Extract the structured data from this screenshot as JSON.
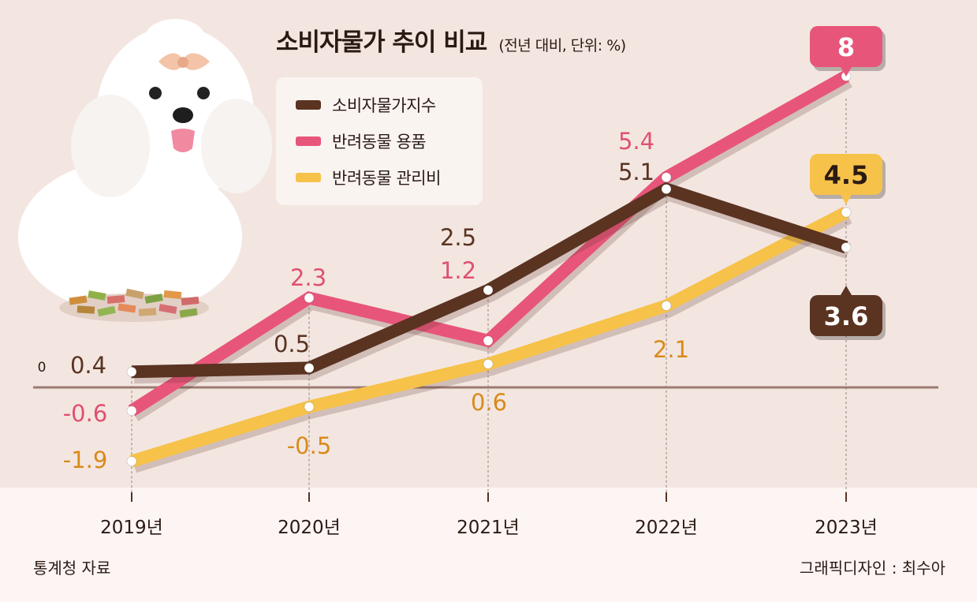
{
  "title": "소비자물가 추이 비교",
  "subtitle": "(전년 대비, 단위: %)",
  "source": "통계청 자료",
  "credit": "그래픽디자인 : 최수아",
  "colors": {
    "cpi": "#5a3321",
    "pet_goods": "#e8557a",
    "pet_care": "#f6c24a",
    "pet_goods_label": "#e05070",
    "pet_care_label": "#d98a1a",
    "background": "#f3e6e1",
    "axis_band": "#fdf5f3"
  },
  "chart_data": {
    "type": "line",
    "title": "소비자물가 추이 비교",
    "subtitle": "(전년 대비, 단위: %)",
    "xlabel": "",
    "ylabel": "",
    "x": [
      "2019년",
      "2020년",
      "2021년",
      "2022년",
      "2023년"
    ],
    "zero_label": "0",
    "ylim": [
      -2.3,
      9
    ],
    "legend_position": "top-left",
    "series": [
      {
        "name": "소비자물가지수",
        "values": [
          0.4,
          0.5,
          2.5,
          5.1,
          3.6
        ],
        "labels": [
          "0.4",
          "0.5",
          "2.5",
          "5.1",
          "3.6"
        ]
      },
      {
        "name": "반려동물 용품",
        "values": [
          -0.6,
          2.3,
          1.2,
          5.4,
          8
        ],
        "labels": [
          "-0.6",
          "2.3",
          "1.2",
          "5.4",
          "8"
        ]
      },
      {
        "name": "반려동물 관리비",
        "values": [
          -1.9,
          -0.5,
          0.6,
          2.1,
          4.5
        ],
        "labels": [
          "-1.9",
          "-0.5",
          "0.6",
          "2.1",
          "4.5"
        ]
      }
    ]
  }
}
